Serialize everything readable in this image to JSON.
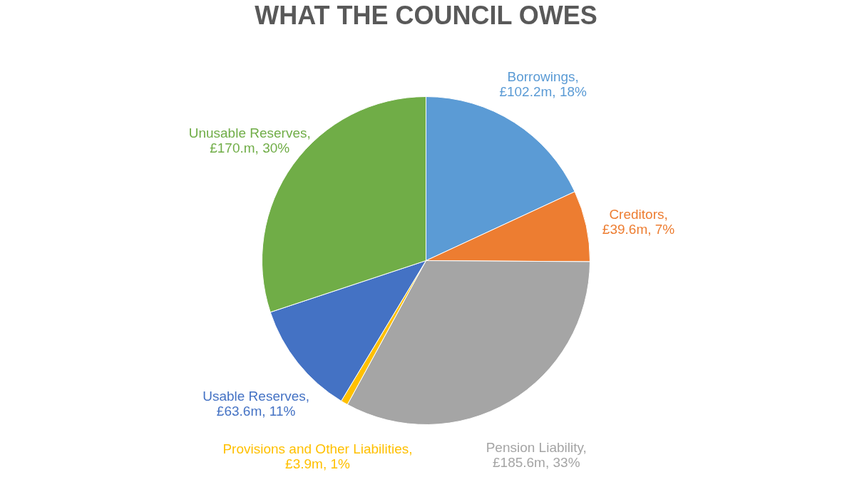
{
  "chart_data": {
    "type": "pie",
    "title": "WHAT THE COUNCIL OWES",
    "categories": [
      "Borrowings, £102.2m, 18%",
      "Creditors, £39.6m, 7%",
      "Pension Liability, £185.6m, 33%",
      "Provisions and Other Liabilities, £3.9m, 1%",
      "Usable Reserves, £63.6m, 11%",
      "Unusable Reserves, £170.m, 30%"
    ],
    "values": [
      102.2,
      39.6,
      185.6,
      3.9,
      63.6,
      170
    ],
    "colors": [
      "#5b9bd5",
      "#ed7d31",
      "#a5a5a5",
      "#ffc000",
      "#4472c4",
      "#70ad47"
    ],
    "legend": false
  }
}
